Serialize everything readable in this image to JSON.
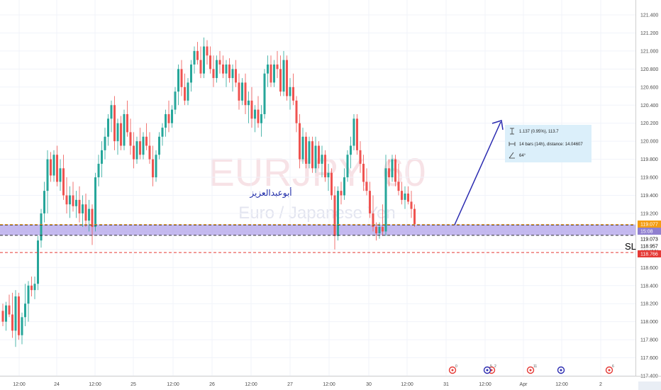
{
  "chart_data": {
    "type": "candlestick",
    "symbol": "EURJPY, 60",
    "description": "Euro / Japanese Yen",
    "annotation_text": "أبوعبدالعزيز",
    "stop_label": "SL",
    "y_axis": {
      "min": 117.4,
      "max": 121.5,
      "ticks": [
        "121.400",
        "121.200",
        "121.000",
        "120.800",
        "120.600",
        "120.400",
        "120.200",
        "120.000",
        "119.800",
        "119.600",
        "119.400",
        "119.200",
        "119.000",
        "118.800",
        "118.600",
        "118.400",
        "118.200",
        "118.000",
        "117.800",
        "117.600",
        "117.400"
      ]
    },
    "x_axis": {
      "labels": [
        "12:00",
        "24",
        "12:00",
        "25",
        "12:00",
        "26",
        "12:00",
        "27",
        "12:00",
        "30",
        "12:00",
        "31",
        "12:00",
        "Apr",
        "12:00",
        "2"
      ]
    },
    "zone": {
      "top": 119.077,
      "bottom": 118.957
    },
    "levels": [
      {
        "value": 119.077,
        "label": "119.077",
        "color": "#f39c12",
        "style": "dashed"
      },
      {
        "value": 119.0,
        "label": "15:08",
        "color": "#8f7fd0",
        "style": "none"
      },
      {
        "value": 119.073,
        "label": "119.073",
        "color": "#ffffff",
        "style": "none"
      },
      {
        "value": 118.957,
        "label": "118.957",
        "color": "#ffffff",
        "style": "none"
      },
      {
        "value": 118.766,
        "label": "118.766",
        "color": "#e53935",
        "style": "dashed"
      }
    ],
    "measure": {
      "price_change": "1.137 (0.95%), 113.7",
      "bars_distance": "14 bars (14h), distance: 14.04607",
      "angle": "64°"
    },
    "events": [
      "0",
      "2",
      "5",
      "11",
      "",
      "6"
    ],
    "colors": {
      "up": "#26a69a",
      "down": "#ef5350",
      "zone": "#b3a5ea",
      "trend": "#2a2ab0",
      "axis_text": "#4a4a4a"
    },
    "candles": [
      {
        "o": 118.12,
        "h": 118.2,
        "l": 117.95,
        "c": 118.0
      },
      {
        "o": 118.0,
        "h": 118.22,
        "l": 117.9,
        "c": 118.18
      },
      {
        "o": 118.18,
        "h": 118.3,
        "l": 118.05,
        "c": 118.08
      },
      {
        "o": 118.08,
        "h": 118.32,
        "l": 117.82,
        "c": 117.9
      },
      {
        "o": 117.9,
        "h": 118.35,
        "l": 117.72,
        "c": 118.28
      },
      {
        "o": 118.28,
        "h": 118.32,
        "l": 117.8,
        "c": 117.85
      },
      {
        "o": 117.85,
        "h": 118.1,
        "l": 117.75,
        "c": 118.05
      },
      {
        "o": 118.05,
        "h": 118.42,
        "l": 117.95,
        "c": 118.2
      },
      {
        "o": 118.2,
        "h": 118.45,
        "l": 118.0,
        "c": 118.4
      },
      {
        "o": 118.4,
        "h": 118.5,
        "l": 118.28,
        "c": 118.35
      },
      {
        "o": 118.35,
        "h": 118.5,
        "l": 118.25,
        "c": 118.42
      },
      {
        "o": 118.42,
        "h": 118.95,
        "l": 118.35,
        "c": 118.9
      },
      {
        "o": 118.9,
        "h": 119.25,
        "l": 118.82,
        "c": 119.2
      },
      {
        "o": 119.2,
        "h": 119.55,
        "l": 119.1,
        "c": 119.45
      },
      {
        "o": 119.45,
        "h": 119.9,
        "l": 119.2,
        "c": 119.8
      },
      {
        "o": 119.8,
        "h": 119.88,
        "l": 119.55,
        "c": 119.62
      },
      {
        "o": 119.62,
        "h": 119.9,
        "l": 119.55,
        "c": 119.85
      },
      {
        "o": 119.85,
        "h": 119.95,
        "l": 119.5,
        "c": 119.55
      },
      {
        "o": 119.55,
        "h": 119.8,
        "l": 119.45,
        "c": 119.7
      },
      {
        "o": 119.7,
        "h": 119.85,
        "l": 119.35,
        "c": 119.4
      },
      {
        "o": 119.4,
        "h": 119.6,
        "l": 119.2,
        "c": 119.3
      },
      {
        "o": 119.3,
        "h": 119.5,
        "l": 119.15,
        "c": 119.4
      },
      {
        "o": 119.4,
        "h": 119.55,
        "l": 119.22,
        "c": 119.28
      },
      {
        "o": 119.28,
        "h": 119.45,
        "l": 119.15,
        "c": 119.35
      },
      {
        "o": 119.35,
        "h": 119.5,
        "l": 119.1,
        "c": 119.2
      },
      {
        "o": 119.2,
        "h": 119.4,
        "l": 119.05,
        "c": 119.3
      },
      {
        "o": 119.3,
        "h": 119.42,
        "l": 119.05,
        "c": 119.12
      },
      {
        "o": 119.12,
        "h": 119.35,
        "l": 119.0,
        "c": 119.25
      },
      {
        "o": 119.25,
        "h": 119.3,
        "l": 118.85,
        "c": 119.05
      },
      {
        "o": 119.05,
        "h": 119.65,
        "l": 119.0,
        "c": 119.6
      },
      {
        "o": 119.6,
        "h": 119.85,
        "l": 119.5,
        "c": 119.75
      },
      {
        "o": 119.75,
        "h": 120.0,
        "l": 119.6,
        "c": 119.9
      },
      {
        "o": 119.9,
        "h": 120.15,
        "l": 119.8,
        "c": 120.05
      },
      {
        "o": 120.05,
        "h": 120.3,
        "l": 119.95,
        "c": 120.25
      },
      {
        "o": 120.25,
        "h": 120.45,
        "l": 120.1,
        "c": 120.4
      },
      {
        "o": 120.4,
        "h": 120.5,
        "l": 119.9,
        "c": 120.0
      },
      {
        "o": 120.0,
        "h": 120.25,
        "l": 119.85,
        "c": 120.2
      },
      {
        "o": 120.2,
        "h": 120.28,
        "l": 119.9,
        "c": 119.95
      },
      {
        "o": 119.95,
        "h": 120.35,
        "l": 119.9,
        "c": 120.3
      },
      {
        "o": 120.3,
        "h": 120.45,
        "l": 120.05,
        "c": 120.1
      },
      {
        "o": 120.1,
        "h": 120.25,
        "l": 119.85,
        "c": 119.95
      },
      {
        "o": 119.95,
        "h": 120.1,
        "l": 119.7,
        "c": 119.8
      },
      {
        "o": 119.8,
        "h": 120.05,
        "l": 119.75,
        "c": 120.0
      },
      {
        "o": 120.0,
        "h": 120.15,
        "l": 119.8,
        "c": 119.85
      },
      {
        "o": 119.85,
        "h": 120.1,
        "l": 119.8,
        "c": 120.05
      },
      {
        "o": 120.05,
        "h": 120.2,
        "l": 119.9,
        "c": 119.95
      },
      {
        "o": 119.95,
        "h": 120.1,
        "l": 119.75,
        "c": 119.8
      },
      {
        "o": 119.8,
        "h": 119.95,
        "l": 119.5,
        "c": 119.6
      },
      {
        "o": 119.6,
        "h": 119.9,
        "l": 119.55,
        "c": 119.85
      },
      {
        "o": 119.85,
        "h": 120.1,
        "l": 119.8,
        "c": 120.05
      },
      {
        "o": 120.05,
        "h": 120.2,
        "l": 119.95,
        "c": 120.15
      },
      {
        "o": 120.15,
        "h": 120.35,
        "l": 120.05,
        "c": 120.3
      },
      {
        "o": 120.3,
        "h": 120.45,
        "l": 120.1,
        "c": 120.2
      },
      {
        "o": 120.2,
        "h": 120.4,
        "l": 120.15,
        "c": 120.35
      },
      {
        "o": 120.35,
        "h": 120.6,
        "l": 120.3,
        "c": 120.55
      },
      {
        "o": 120.55,
        "h": 120.85,
        "l": 120.4,
        "c": 120.8
      },
      {
        "o": 120.8,
        "h": 120.9,
        "l": 120.5,
        "c": 120.6
      },
      {
        "o": 120.6,
        "h": 120.75,
        "l": 120.4,
        "c": 120.45
      },
      {
        "o": 120.45,
        "h": 120.7,
        "l": 120.4,
        "c": 120.65
      },
      {
        "o": 120.65,
        "h": 120.9,
        "l": 120.55,
        "c": 120.85
      },
      {
        "o": 120.85,
        "h": 121.05,
        "l": 120.75,
        "c": 121.0
      },
      {
        "o": 121.0,
        "h": 121.1,
        "l": 120.85,
        "c": 120.9
      },
      {
        "o": 120.9,
        "h": 121.05,
        "l": 120.7,
        "c": 120.75
      },
      {
        "o": 120.75,
        "h": 121.15,
        "l": 120.7,
        "c": 121.05
      },
      {
        "o": 121.05,
        "h": 121.12,
        "l": 120.85,
        "c": 120.95
      },
      {
        "o": 120.95,
        "h": 121.05,
        "l": 120.75,
        "c": 120.8
      },
      {
        "o": 120.8,
        "h": 120.95,
        "l": 120.6,
        "c": 120.7
      },
      {
        "o": 120.7,
        "h": 120.95,
        "l": 120.65,
        "c": 120.9
      },
      {
        "o": 120.9,
        "h": 121.0,
        "l": 120.75,
        "c": 120.85
      },
      {
        "o": 120.85,
        "h": 120.95,
        "l": 120.7,
        "c": 120.75
      },
      {
        "o": 120.75,
        "h": 120.9,
        "l": 120.6,
        "c": 120.85
      },
      {
        "o": 120.85,
        "h": 120.92,
        "l": 120.65,
        "c": 120.7
      },
      {
        "o": 120.7,
        "h": 120.85,
        "l": 120.55,
        "c": 120.8
      },
      {
        "o": 120.8,
        "h": 120.9,
        "l": 120.6,
        "c": 120.65
      },
      {
        "o": 120.65,
        "h": 120.75,
        "l": 120.35,
        "c": 120.45
      },
      {
        "o": 120.45,
        "h": 120.7,
        "l": 120.4,
        "c": 120.65
      },
      {
        "o": 120.65,
        "h": 120.75,
        "l": 120.3,
        "c": 120.4
      },
      {
        "o": 120.4,
        "h": 120.55,
        "l": 120.2,
        "c": 120.45
      },
      {
        "o": 120.45,
        "h": 120.6,
        "l": 120.15,
        "c": 120.25
      },
      {
        "o": 120.25,
        "h": 120.4,
        "l": 120.1,
        "c": 120.35
      },
      {
        "o": 120.35,
        "h": 120.5,
        "l": 120.15,
        "c": 120.2
      },
      {
        "o": 120.2,
        "h": 120.4,
        "l": 120.05,
        "c": 120.3
      },
      {
        "o": 120.3,
        "h": 120.8,
        "l": 120.25,
        "c": 120.75
      },
      {
        "o": 120.75,
        "h": 120.95,
        "l": 120.6,
        "c": 120.85
      },
      {
        "o": 120.85,
        "h": 120.95,
        "l": 120.6,
        "c": 120.65
      },
      {
        "o": 120.65,
        "h": 120.9,
        "l": 120.6,
        "c": 120.85
      },
      {
        "o": 120.85,
        "h": 121.0,
        "l": 120.7,
        "c": 120.8
      },
      {
        "o": 120.8,
        "h": 120.95,
        "l": 120.5,
        "c": 120.55
      },
      {
        "o": 120.55,
        "h": 121.0,
        "l": 120.5,
        "c": 120.9
      },
      {
        "o": 120.9,
        "h": 120.95,
        "l": 120.45,
        "c": 120.5
      },
      {
        "o": 120.5,
        "h": 120.7,
        "l": 120.35,
        "c": 120.6
      },
      {
        "o": 120.6,
        "h": 120.75,
        "l": 120.4,
        "c": 120.45
      },
      {
        "o": 120.45,
        "h": 120.5,
        "l": 120.1,
        "c": 120.2
      },
      {
        "o": 120.2,
        "h": 120.3,
        "l": 119.7,
        "c": 119.8
      },
      {
        "o": 119.8,
        "h": 120.15,
        "l": 119.75,
        "c": 120.05
      },
      {
        "o": 120.05,
        "h": 120.1,
        "l": 119.7,
        "c": 119.75
      },
      {
        "o": 119.75,
        "h": 120.05,
        "l": 119.7,
        "c": 120.0
      },
      {
        "o": 120.0,
        "h": 120.05,
        "l": 119.65,
        "c": 119.7
      },
      {
        "o": 119.7,
        "h": 120.05,
        "l": 119.65,
        "c": 119.95
      },
      {
        "o": 119.95,
        "h": 120.0,
        "l": 119.7,
        "c": 119.75
      },
      {
        "o": 119.75,
        "h": 119.95,
        "l": 119.6,
        "c": 119.85
      },
      {
        "o": 119.85,
        "h": 119.9,
        "l": 119.55,
        "c": 119.6
      },
      {
        "o": 119.6,
        "h": 119.75,
        "l": 119.45,
        "c": 119.65
      },
      {
        "o": 119.65,
        "h": 119.7,
        "l": 119.35,
        "c": 119.4
      },
      {
        "o": 119.4,
        "h": 119.5,
        "l": 118.8,
        "c": 118.95
      },
      {
        "o": 118.95,
        "h": 119.5,
        "l": 118.9,
        "c": 119.45
      },
      {
        "o": 119.45,
        "h": 119.55,
        "l": 119.3,
        "c": 119.4
      },
      {
        "o": 119.4,
        "h": 119.7,
        "l": 119.35,
        "c": 119.6
      },
      {
        "o": 119.6,
        "h": 119.9,
        "l": 119.55,
        "c": 119.85
      },
      {
        "o": 119.85,
        "h": 120.05,
        "l": 119.7,
        "c": 119.95
      },
      {
        "o": 119.95,
        "h": 120.3,
        "l": 119.9,
        "c": 120.25
      },
      {
        "o": 120.25,
        "h": 120.3,
        "l": 119.85,
        "c": 119.9
      },
      {
        "o": 119.9,
        "h": 120.0,
        "l": 119.65,
        "c": 119.75
      },
      {
        "o": 119.75,
        "h": 119.85,
        "l": 119.45,
        "c": 119.55
      },
      {
        "o": 119.55,
        "h": 119.7,
        "l": 119.4,
        "c": 119.45
      },
      {
        "o": 119.45,
        "h": 119.55,
        "l": 119.15,
        "c": 119.2
      },
      {
        "o": 119.2,
        "h": 119.4,
        "l": 119.0,
        "c": 119.05
      },
      {
        "o": 119.05,
        "h": 119.1,
        "l": 118.9,
        "c": 118.98
      },
      {
        "o": 118.98,
        "h": 119.1,
        "l": 118.92,
        "c": 119.05
      },
      {
        "o": 119.05,
        "h": 119.3,
        "l": 118.95,
        "c": 119.0
      },
      {
        "o": 119.0,
        "h": 119.85,
        "l": 118.95,
        "c": 119.7
      },
      {
        "o": 119.7,
        "h": 119.8,
        "l": 119.5,
        "c": 119.6
      },
      {
        "o": 119.6,
        "h": 119.85,
        "l": 119.55,
        "c": 119.8
      },
      {
        "o": 119.8,
        "h": 119.85,
        "l": 119.5,
        "c": 119.55
      },
      {
        "o": 119.55,
        "h": 119.75,
        "l": 119.4,
        "c": 119.45
      },
      {
        "o": 119.45,
        "h": 119.55,
        "l": 119.3,
        "c": 119.35
      },
      {
        "o": 119.35,
        "h": 119.5,
        "l": 119.25,
        "c": 119.42
      },
      {
        "o": 119.42,
        "h": 119.5,
        "l": 119.3,
        "c": 119.33
      },
      {
        "o": 119.33,
        "h": 119.45,
        "l": 119.15,
        "c": 119.25
      },
      {
        "o": 119.25,
        "h": 119.3,
        "l": 119.05,
        "c": 119.08
      }
    ]
  }
}
